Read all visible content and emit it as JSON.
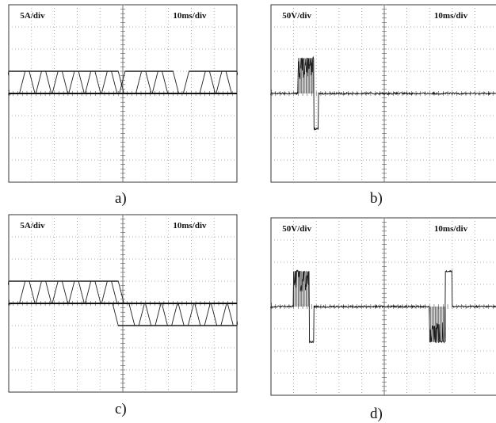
{
  "chart_data": [
    {
      "id": "a",
      "type": "line",
      "title": "",
      "caption": "a)",
      "scale_label": "5A/div",
      "time_label": "10ms/div",
      "divisions": {
        "x": 10,
        "y": 8
      },
      "series_count": 7,
      "amplitude_div": 1.0,
      "waveform": "square pulses (+1 div) on zero baseline: t 0-4.8 div, 5.1-7.2 div, 7.9-10 div; staggered ramps"
    },
    {
      "id": "b",
      "type": "line",
      "title": "",
      "caption": "b)",
      "scale_label": "50V/div",
      "time_label": "10ms/div",
      "divisions": {
        "x": 10,
        "y": 8
      },
      "amplitude_div": 1.6,
      "waveform": "burst +1.6 div at t 1.2-1.9 div, -1.6 div at t 1.9-2.1 div, noisy zero baseline"
    },
    {
      "id": "c",
      "type": "line",
      "title": "",
      "caption": "c)",
      "scale_label": "5A/div",
      "time_label": "10ms/div",
      "divisions": {
        "x": 10,
        "y": 8
      },
      "series_count": 7,
      "amplitude_div": 1.0,
      "waveform": "positive pulses (+1 div) t 0-4.8 div, negative pulses (-1 div) t 4.8-10 div"
    },
    {
      "id": "d",
      "type": "line",
      "title": "",
      "caption": "d)",
      "scale_label": "50V/div",
      "time_label": "10ms/div",
      "divisions": {
        "x": 10,
        "y": 8
      },
      "amplitude_div": 1.6,
      "waveform": "+1.6 div burst t 1.0-1.7 div, -1.6 div t 1.7-1.9 div; -1.6 div burst t 7.0-7.7 div, +1.6 div t 7.7-8.0 div"
    }
  ]
}
